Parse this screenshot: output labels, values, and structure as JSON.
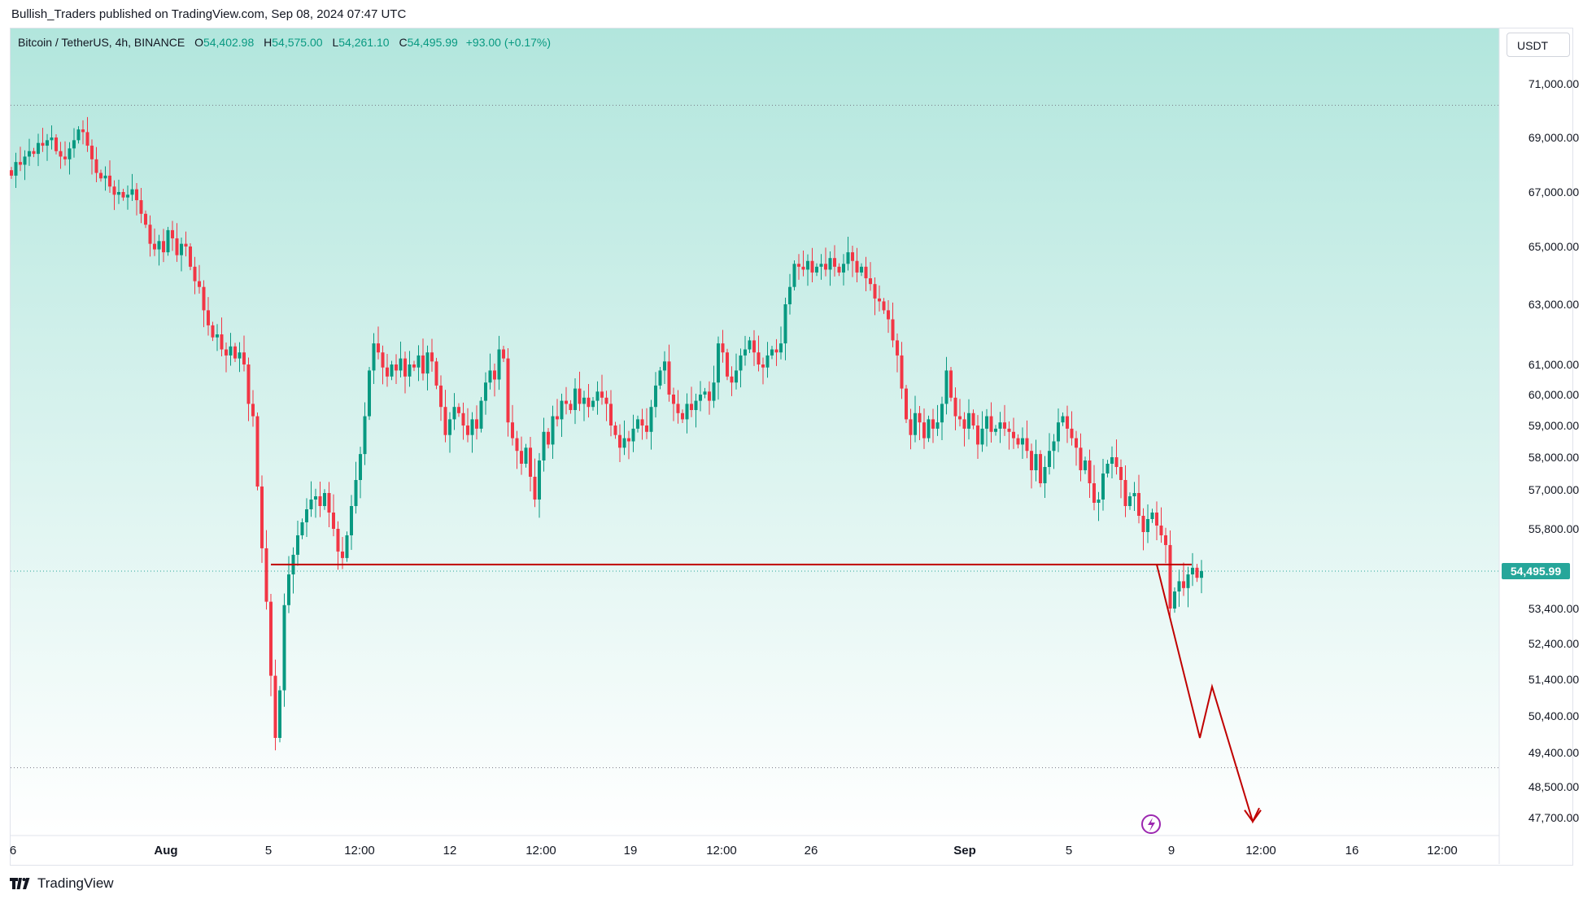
{
  "header": {
    "published_by": "Bullish_Traders published on TradingView.com, Sep 08, 2024 07:47 UTC"
  },
  "legend": {
    "symbol": "Bitcoin / TetherUS, 4h, BINANCE",
    "open_label": "O",
    "open": "54,402.98",
    "high_label": "H",
    "high": "54,575.00",
    "low_label": "L",
    "low": "54,261.10",
    "close_label": "C",
    "close": "54,495.99",
    "change": "+93.00 (+0.17%)"
  },
  "currency_button": "USDT",
  "footer": {
    "brand": "TradingView"
  },
  "colors": {
    "up": "#089981",
    "down": "#f23645",
    "projection": "#c00000",
    "bg_top": "#b2e6dd",
    "bg_bottom": "#ffffff",
    "price_label_bg": "#26a69a"
  },
  "chart_data": {
    "type": "candlestick",
    "title": "Bitcoin / TetherUS, 4h, BINANCE",
    "y_axis_unit": "USDT",
    "y_ticks": [
      "71,000.00",
      "69,000.00",
      "67,000.00",
      "65,000.00",
      "63,000.00",
      "61,000.00",
      "60,000.00",
      "59,000.00",
      "58,000.00",
      "57,000.00",
      "55,800.00",
      "53,400.00",
      "52,400.00",
      "51,400.00",
      "50,400.00",
      "49,400.00",
      "48,500.00",
      "47,700.00"
    ],
    "x_ticks": [
      "6",
      "Aug",
      "5",
      "12:00",
      "12",
      "12:00",
      "19",
      "12:00",
      "26",
      "Sep",
      "5",
      "9",
      "12:00",
      "16",
      "12:00"
    ],
    "last_price_label": "54,495.99",
    "last_price": 54495.99,
    "dotted_levels": [
      70200,
      49000
    ],
    "support_level": 54700,
    "closes": [
      67600,
      68100,
      68000,
      68300,
      68500,
      68400,
      68800,
      68700,
      68900,
      69000,
      68500,
      68300,
      68200,
      68600,
      68900,
      69300,
      69200,
      68700,
      68200,
      67700,
      67500,
      67600,
      67200,
      66900,
      67000,
      66800,
      66900,
      67100,
      66700,
      66200,
      65800,
      65100,
      64900,
      65200,
      64800,
      65600,
      65300,
      64700,
      65100,
      65000,
      64300,
      63800,
      63600,
      62800,
      62300,
      61900,
      62000,
      61500,
      61300,
      61600,
      61200,
      61400,
      61000,
      59700,
      59300,
      57100,
      55200,
      53600,
      51500,
      49800,
      51100,
      53500,
      54400,
      55000,
      55600,
      56000,
      56400,
      56700,
      56800,
      56500,
      56900,
      56300,
      55800,
      55100,
      54900,
      55600,
      56500,
      57300,
      58100,
      59300,
      60800,
      61700,
      61400,
      60900,
      60600,
      61000,
      60800,
      61200,
      60600,
      61000,
      60900,
      61300,
      60700,
      61400,
      61100,
      60300,
      59600,
      58700,
      59200,
      59600,
      59400,
      59000,
      58700,
      59200,
      58900,
      59800,
      60400,
      60800,
      60500,
      61500,
      61200,
      59100,
      58600,
      58200,
      57800,
      58300,
      57400,
      56700,
      57900,
      58800,
      58400,
      59300,
      59200,
      59800,
      59700,
      59500,
      60200,
      59700,
      59900,
      59600,
      59800,
      60100,
      59900,
      59700,
      59000,
      58700,
      58300,
      58600,
      58500,
      58900,
      59200,
      59000,
      58800,
      59600,
      60300,
      60800,
      61100,
      60000,
      59700,
      59400,
      59200,
      59700,
      59500,
      59800,
      60000,
      60100,
      59800,
      60400,
      61700,
      61400,
      60600,
      60400,
      60800,
      61300,
      61500,
      61800,
      61400,
      61000,
      60900,
      61300,
      61500,
      61400,
      61700,
      63000,
      63600,
      64400,
      64300,
      64200,
      64500,
      64100,
      64300,
      64400,
      64200,
      64600,
      64300,
      64100,
      64400,
      64800,
      64500,
      64100,
      64300,
      63900,
      63700,
      63200,
      63100,
      62800,
      62500,
      61800,
      61300,
      60200,
      59200,
      58700,
      59400,
      59100,
      58600,
      59200,
      58900,
      59100,
      59700,
      60800,
      59900,
      59300,
      59200,
      58900,
      59400,
      59000,
      58400,
      58900,
      59300,
      58800,
      58900,
      59100,
      58900,
      58800,
      58600,
      58400,
      58600,
      58200,
      57600,
      58100,
      57200,
      57700,
      58200,
      58500,
      59100,
      59300,
      58900,
      58600,
      58300,
      57600,
      57900,
      57200,
      56600,
      56700,
      57500,
      57800,
      58000,
      57700,
      57300,
      56500,
      56800,
      56900,
      56200,
      55700,
      56100,
      56300,
      55900,
      55600,
      55300,
      53400,
      53900,
      54200,
      54000,
      54400,
      54600,
      54300,
      54500
    ],
    "projection_path": [
      {
        "t": "Sep 8 04:00",
        "price": 54700
      },
      {
        "t": "Sep 9 04:00",
        "price": 49800
      },
      {
        "t": "Sep 9 16:00",
        "price": 51200
      },
      {
        "t": "Sep 12 04:00",
        "price": 47600
      },
      {
        "t": "Sep 12 08:00",
        "price": 47950
      }
    ]
  }
}
